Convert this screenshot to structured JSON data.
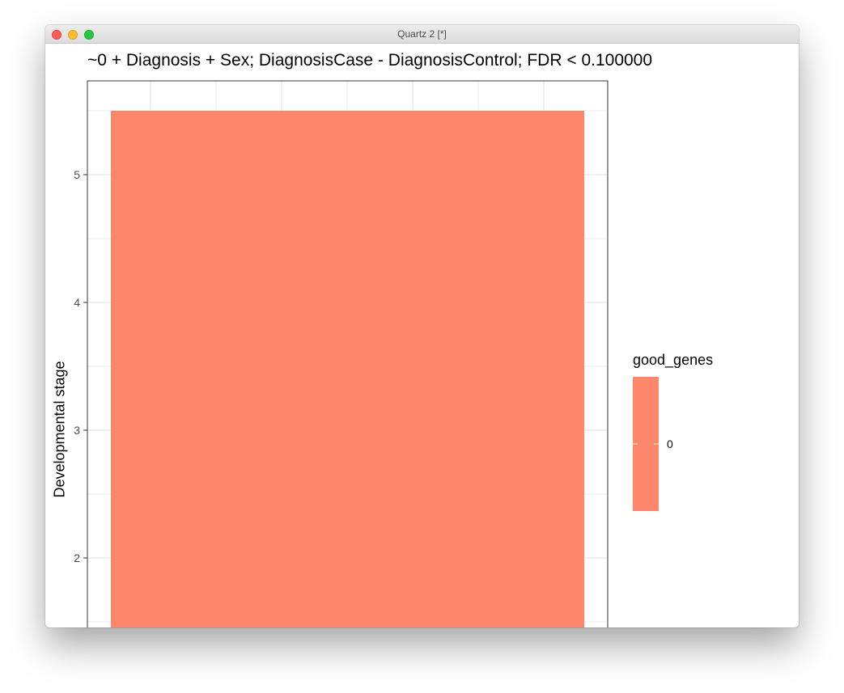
{
  "window": {
    "title": "Quartz 2 [*]",
    "buttons": [
      "close",
      "minimize",
      "zoom"
    ]
  },
  "chart_data": {
    "type": "bar",
    "title": "~0 + Diagnosis + Sex; DiagnosisCase - DiagnosisControl; FDR < 0.100000",
    "xlabel": "",
    "ylabel": "Developmental stage",
    "categories": [
      "0"
    ],
    "values": [
      5.5
    ],
    "ylim": [
      1.5,
      6.0
    ],
    "yticks": [
      2,
      3,
      4,
      5
    ],
    "grid": true,
    "legend": {
      "title": "good_genes",
      "entries": [
        "0"
      ],
      "placement": "right"
    },
    "colors": {
      "bar": "#fe876b",
      "grid": "#ebebeb",
      "panel_border": "#333333"
    }
  }
}
